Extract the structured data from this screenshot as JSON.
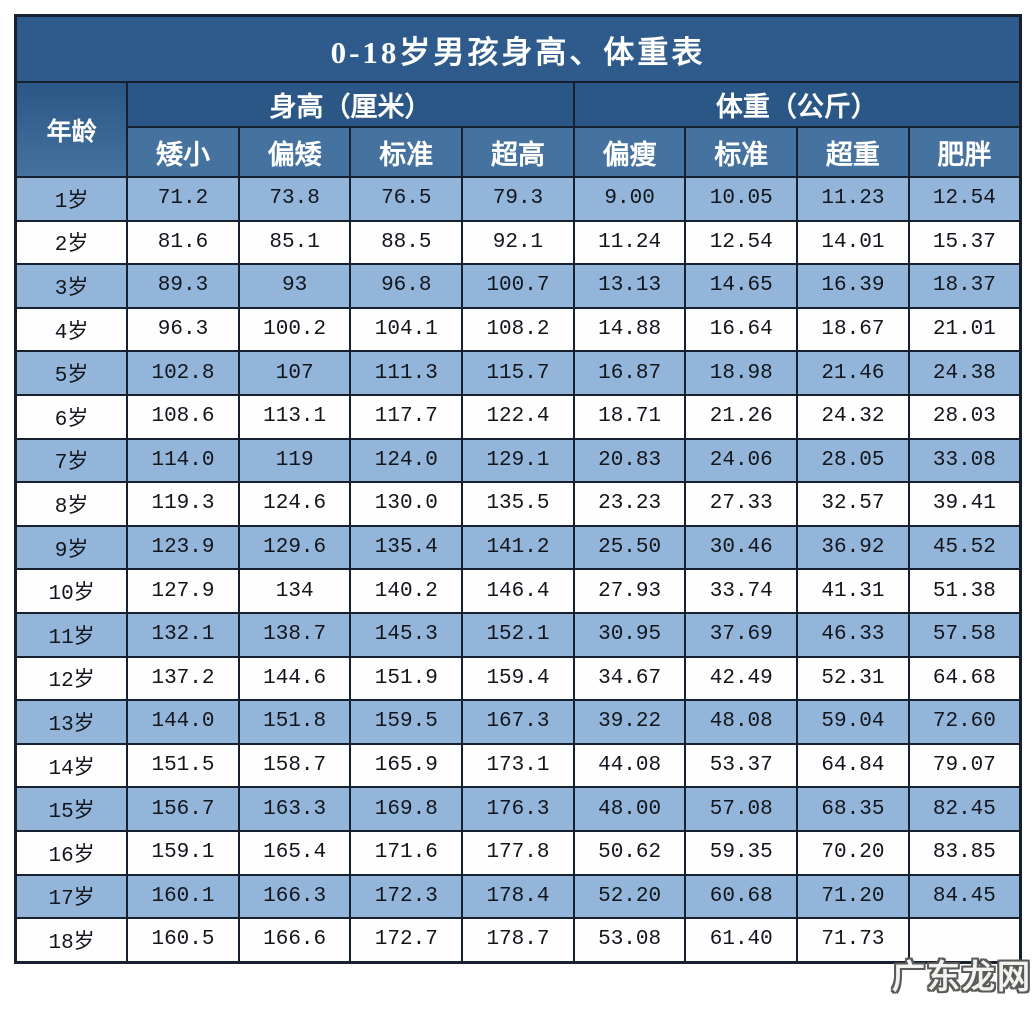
{
  "watermark": "广东龙网",
  "colors": {
    "title_bar": "#2e5b8c",
    "group_header": "#2b5786",
    "sub_header": "#45729f",
    "stripe_blue": "#93b5da",
    "stripe_white": "#fefefe",
    "border": "#16202e",
    "header_text": "#ffffff",
    "data_text": "#12161c"
  },
  "chart_data": {
    "type": "table",
    "title": "0-18岁男孩身高、体重表",
    "row_header": "年龄",
    "groups": [
      {
        "label": "身高（厘米）",
        "columns": [
          "矮小",
          "偏矮",
          "标准",
          "超高"
        ]
      },
      {
        "label": "体重（公斤）",
        "columns": [
          "偏瘦",
          "标准",
          "超重",
          "肥胖"
        ]
      }
    ],
    "rows": [
      {
        "age": "1岁",
        "height": [
          "71.2",
          "73.8",
          "76.5",
          "79.3"
        ],
        "weight": [
          "9.00",
          "10.05",
          "11.23",
          "12.54"
        ]
      },
      {
        "age": "2岁",
        "height": [
          "81.6",
          "85.1",
          "88.5",
          "92.1"
        ],
        "weight": [
          "11.24",
          "12.54",
          "14.01",
          "15.37"
        ]
      },
      {
        "age": "3岁",
        "height": [
          "89.3",
          "93",
          "96.8",
          "100.7"
        ],
        "weight": [
          "13.13",
          "14.65",
          "16.39",
          "18.37"
        ]
      },
      {
        "age": "4岁",
        "height": [
          "96.3",
          "100.2",
          "104.1",
          "108.2"
        ],
        "weight": [
          "14.88",
          "16.64",
          "18.67",
          "21.01"
        ]
      },
      {
        "age": "5岁",
        "height": [
          "102.8",
          "107",
          "111.3",
          "115.7"
        ],
        "weight": [
          "16.87",
          "18.98",
          "21.46",
          "24.38"
        ]
      },
      {
        "age": "6岁",
        "height": [
          "108.6",
          "113.1",
          "117.7",
          "122.4"
        ],
        "weight": [
          "18.71",
          "21.26",
          "24.32",
          "28.03"
        ]
      },
      {
        "age": "7岁",
        "height": [
          "114.0",
          "119",
          "124.0",
          "129.1"
        ],
        "weight": [
          "20.83",
          "24.06",
          "28.05",
          "33.08"
        ]
      },
      {
        "age": "8岁",
        "height": [
          "119.3",
          "124.6",
          "130.0",
          "135.5"
        ],
        "weight": [
          "23.23",
          "27.33",
          "32.57",
          "39.41"
        ]
      },
      {
        "age": "9岁",
        "height": [
          "123.9",
          "129.6",
          "135.4",
          "141.2"
        ],
        "weight": [
          "25.50",
          "30.46",
          "36.92",
          "45.52"
        ]
      },
      {
        "age": "10岁",
        "height": [
          "127.9",
          "134",
          "140.2",
          "146.4"
        ],
        "weight": [
          "27.93",
          "33.74",
          "41.31",
          "51.38"
        ]
      },
      {
        "age": "11岁",
        "height": [
          "132.1",
          "138.7",
          "145.3",
          "152.1"
        ],
        "weight": [
          "30.95",
          "37.69",
          "46.33",
          "57.58"
        ]
      },
      {
        "age": "12岁",
        "height": [
          "137.2",
          "144.6",
          "151.9",
          "159.4"
        ],
        "weight": [
          "34.67",
          "42.49",
          "52.31",
          "64.68"
        ]
      },
      {
        "age": "13岁",
        "height": [
          "144.0",
          "151.8",
          "159.5",
          "167.3"
        ],
        "weight": [
          "39.22",
          "48.08",
          "59.04",
          "72.60"
        ]
      },
      {
        "age": "14岁",
        "height": [
          "151.5",
          "158.7",
          "165.9",
          "173.1"
        ],
        "weight": [
          "44.08",
          "53.37",
          "64.84",
          "79.07"
        ]
      },
      {
        "age": "15岁",
        "height": [
          "156.7",
          "163.3",
          "169.8",
          "176.3"
        ],
        "weight": [
          "48.00",
          "57.08",
          "68.35",
          "82.45"
        ]
      },
      {
        "age": "16岁",
        "height": [
          "159.1",
          "165.4",
          "171.6",
          "177.8"
        ],
        "weight": [
          "50.62",
          "59.35",
          "70.20",
          "83.85"
        ]
      },
      {
        "age": "17岁",
        "height": [
          "160.1",
          "166.3",
          "172.3",
          "178.4"
        ],
        "weight": [
          "52.20",
          "60.68",
          "71.20",
          "84.45"
        ]
      },
      {
        "age": "18岁",
        "height": [
          "160.5",
          "166.6",
          "172.7",
          "178.7"
        ],
        "weight": [
          "53.08",
          "61.40",
          "71.73",
          ""
        ]
      }
    ]
  }
}
